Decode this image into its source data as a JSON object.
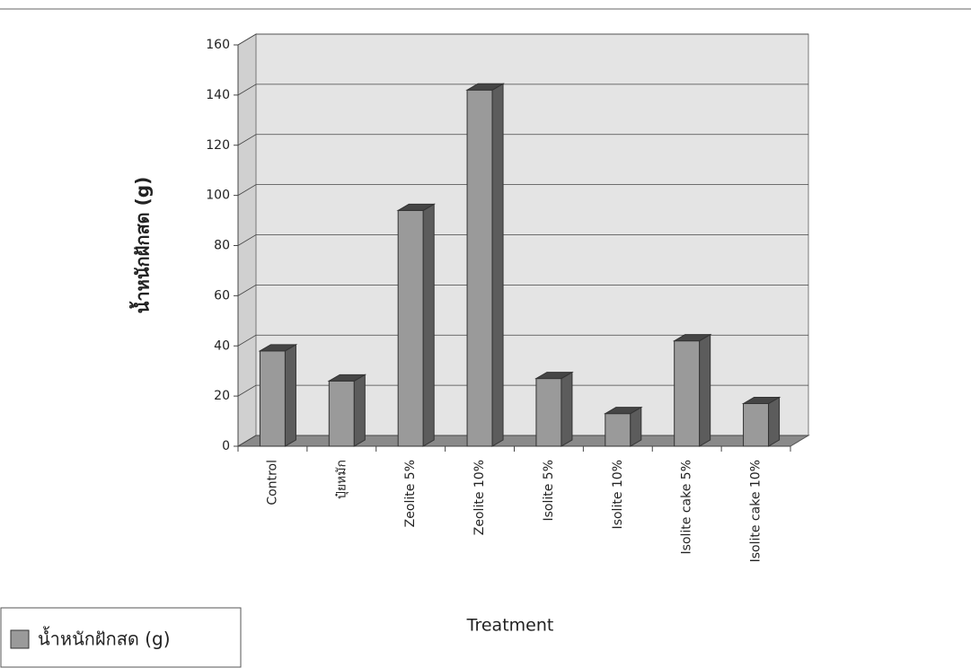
{
  "chart_data": {
    "type": "bar",
    "x_label": "Treatment",
    "y_label": "น้ำหนักฝักสด (g)",
    "categories": [
      "Control",
      "ปุ๋ยหมัก",
      "Zeolite 5%",
      "Zeolite 10%",
      "Isolite 5%",
      "Isolite 10%",
      "Isolite cake 5%",
      "Isolite cake 10%"
    ],
    "series": [
      {
        "name": "น้ำหนักฝักสด (g)",
        "color": "#9a9a9a",
        "values": [
          38,
          26,
          94,
          142,
          27,
          13,
          42,
          17
        ]
      }
    ],
    "ylim": [
      0,
      160
    ],
    "yticks": [
      0,
      20,
      40,
      60,
      80,
      100,
      120,
      140,
      160
    ],
    "grid": true,
    "legend": "bottom-left"
  }
}
